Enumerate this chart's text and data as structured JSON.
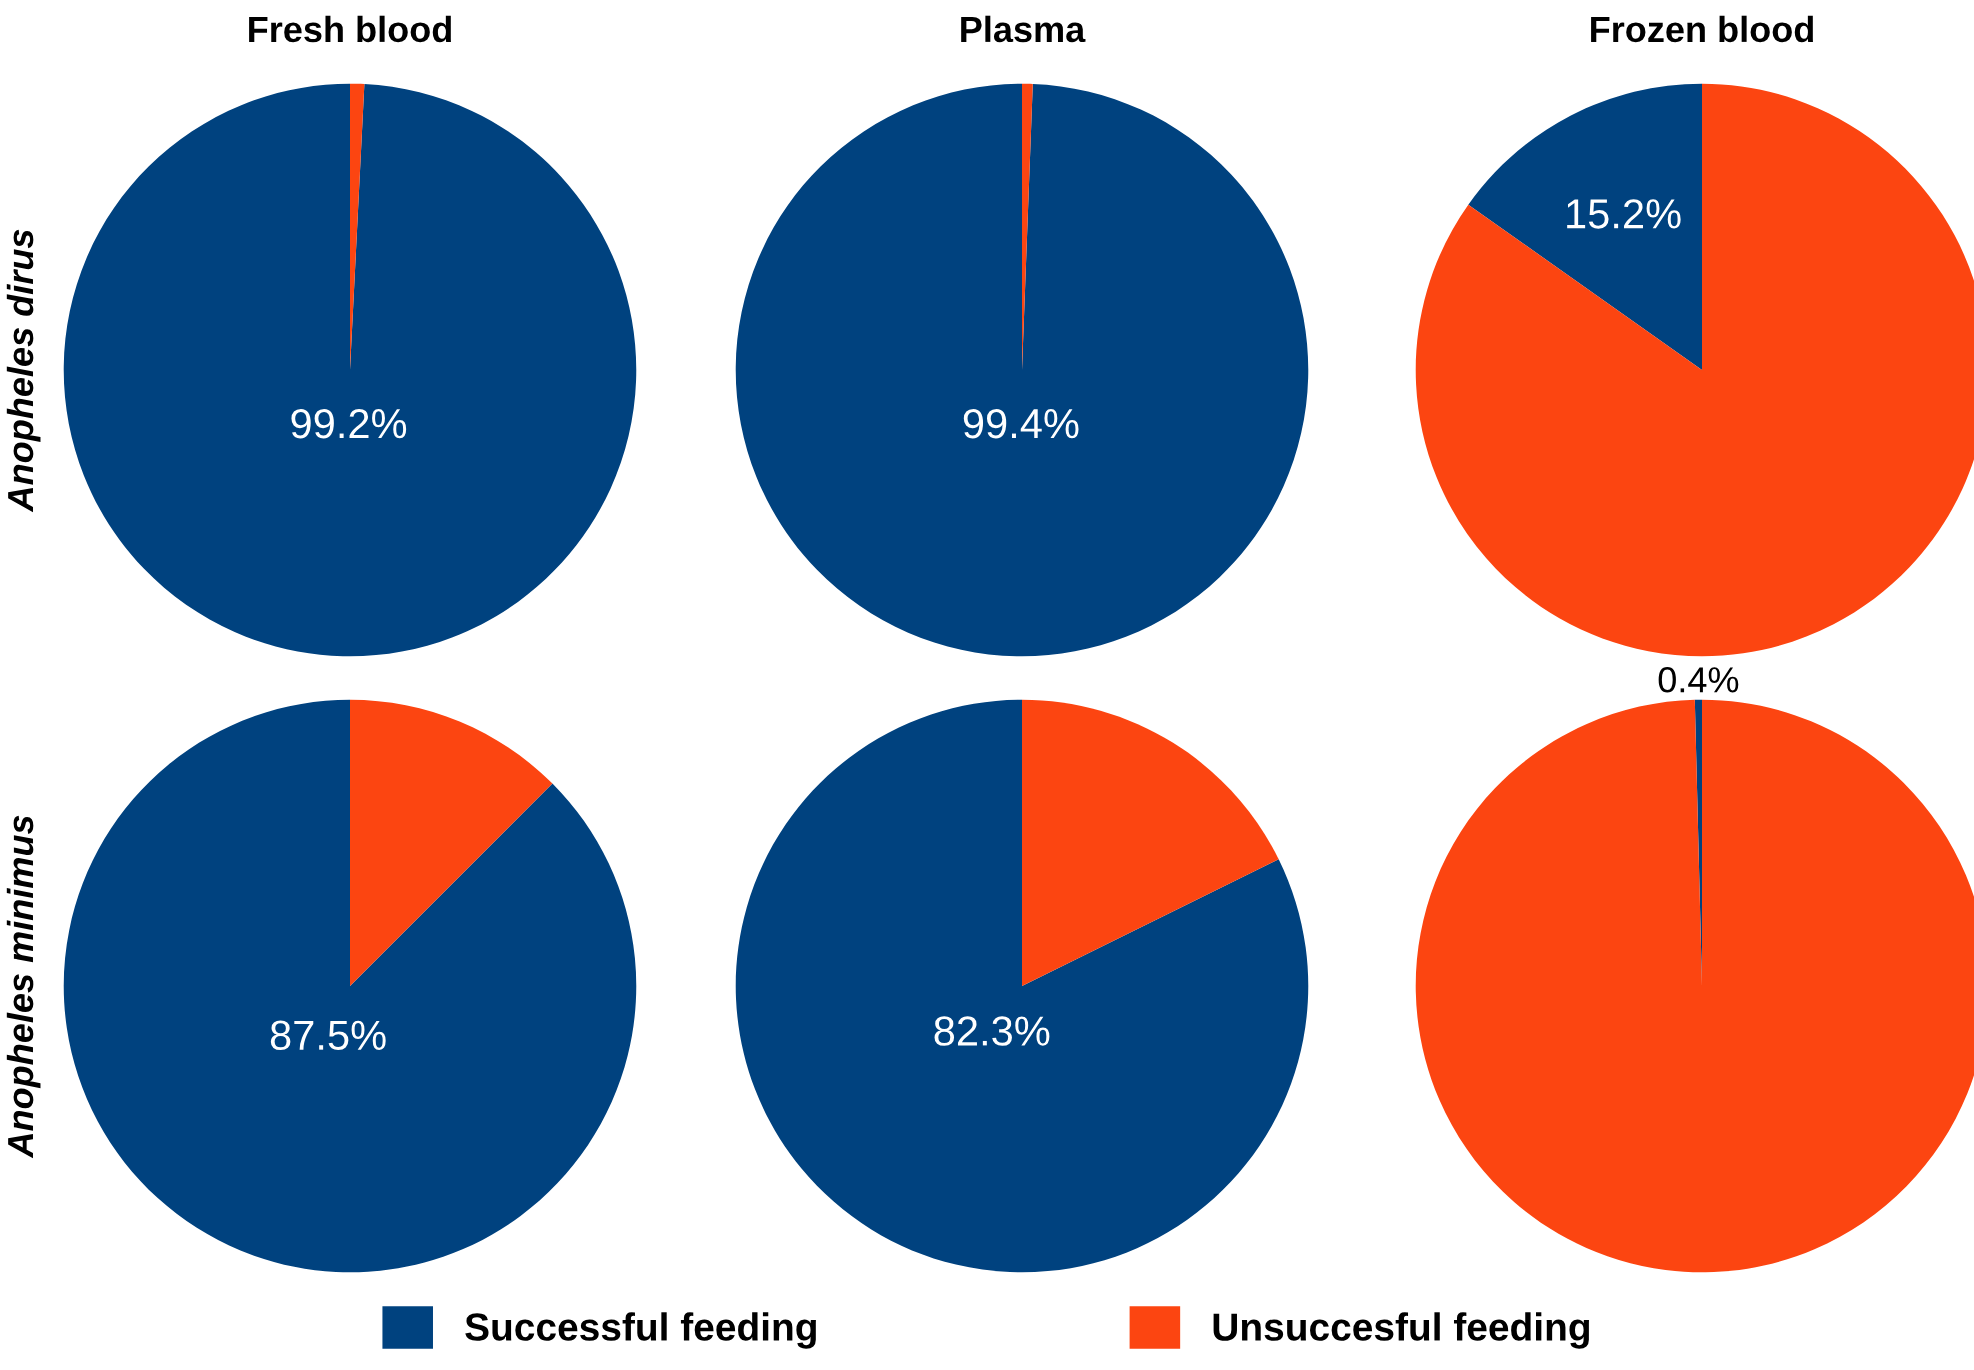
{
  "chart_data": [
    {
      "type": "pie",
      "title": "Fresh blood",
      "ylabel": "Anopheles dirus",
      "categories": [
        "Successful feeding",
        "Unsuccesful feeding"
      ],
      "values": [
        99.2,
        0.8
      ],
      "colors": [
        "#00427f",
        "#fc4511"
      ],
      "value_labels": [
        "99.2%",
        null
      ],
      "legend": "bottom"
    },
    {
      "type": "pie",
      "title": "Plasma",
      "categories": [
        null,
        null
      ],
      "values": [
        99.4,
        0.6
      ],
      "colors": [
        "#00427f",
        "#fc4511"
      ],
      "value_labels": [
        "99.4%",
        null
      ]
    },
    {
      "type": "pie",
      "title": "Frozen blood",
      "categories": [
        null,
        null
      ],
      "values": [
        15.2,
        84.8
      ],
      "colors": [
        "#00427f",
        "#fc4511"
      ],
      "value_labels": [
        "15.2%",
        null
      ]
    },
    {
      "type": "pie",
      "ylabel": "Anopheles minimus",
      "categories": [
        null,
        null
      ],
      "values": [
        87.5,
        12.5
      ],
      "colors": [
        "#00427f",
        "#fc4511"
      ],
      "value_labels": [
        "87.5%",
        null
      ]
    },
    {
      "type": "pie",
      "categories": [
        null,
        null
      ],
      "values": [
        82.3,
        17.7
      ],
      "colors": [
        "#00427f",
        "#fc4511"
      ],
      "value_labels": [
        "82.3%",
        null
      ]
    },
    {
      "type": "pie",
      "categories": [
        null,
        null
      ],
      "values": [
        0.4,
        99.6
      ],
      "colors": [
        "#00427f",
        "#fc4511"
      ],
      "value_labels": [
        "0.4%",
        null
      ]
    }
  ]
}
